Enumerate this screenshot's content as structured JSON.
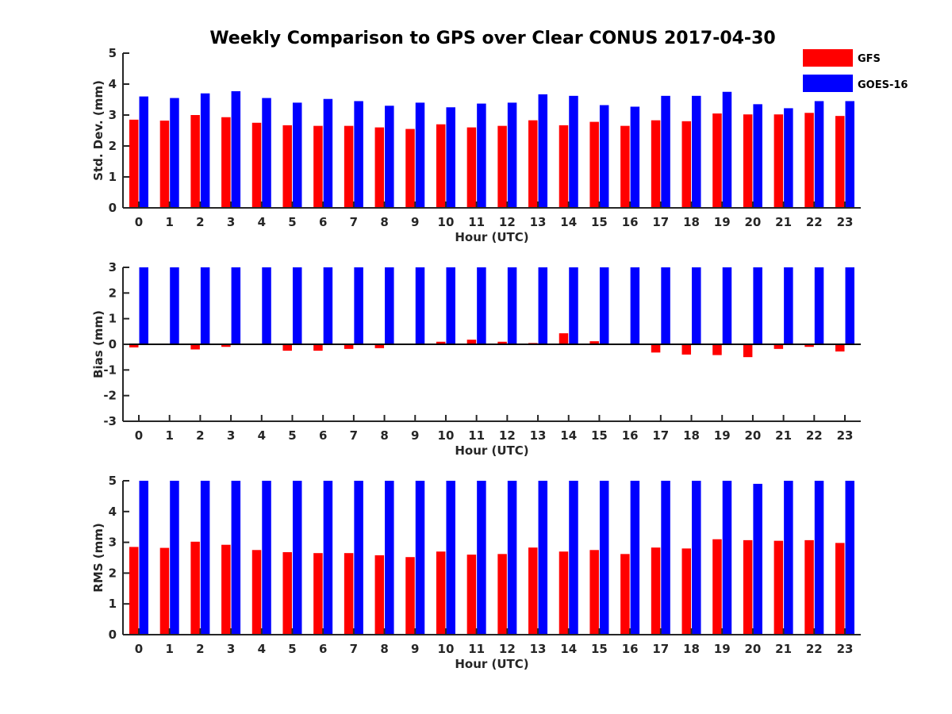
{
  "title": "Weekly Comparison to GPS over Clear CONUS 2017-04-30",
  "colors": {
    "GFS": "#ff0000",
    "GOES-16": "#0000ff"
  },
  "legend": [
    {
      "name": "GFS",
      "color": "#ff0000"
    },
    {
      "name": "GOES-16",
      "color": "#0000ff"
    }
  ],
  "chart_data": [
    {
      "type": "bar",
      "id": "std",
      "ylabel": "Std. Dev. (mm)",
      "xlabel": "Hour (UTC)",
      "ylim": [
        0,
        5
      ],
      "yticks": [
        0,
        1,
        2,
        3,
        4,
        5
      ],
      "categories": [
        "0",
        "1",
        "2",
        "3",
        "4",
        "5",
        "6",
        "7",
        "8",
        "9",
        "10",
        "11",
        "12",
        "13",
        "14",
        "15",
        "16",
        "17",
        "18",
        "19",
        "20",
        "21",
        "22",
        "23"
      ],
      "series": [
        {
          "name": "GFS",
          "values": [
            2.85,
            2.82,
            3.0,
            2.93,
            2.75,
            2.67,
            2.65,
            2.65,
            2.6,
            2.55,
            2.7,
            2.6,
            2.65,
            2.83,
            2.67,
            2.78,
            2.65,
            2.83,
            2.8,
            3.05,
            3.02,
            3.02,
            3.07,
            2.97
          ]
        },
        {
          "name": "GOES-16",
          "values": [
            3.6,
            3.55,
            3.7,
            3.77,
            3.55,
            3.4,
            3.52,
            3.45,
            3.3,
            3.4,
            3.25,
            3.37,
            3.4,
            3.67,
            3.62,
            3.32,
            3.27,
            3.62,
            3.62,
            3.75,
            3.35,
            3.22,
            3.45,
            3.45
          ]
        }
      ]
    },
    {
      "type": "bar",
      "id": "bias",
      "ylabel": "Bias (mm)",
      "xlabel": "Hour (UTC)",
      "ylim": [
        -3,
        3
      ],
      "yticks": [
        -3,
        -2,
        -1,
        0,
        1,
        2,
        3
      ],
      "zero_line": true,
      "categories": [
        "0",
        "1",
        "2",
        "3",
        "4",
        "5",
        "6",
        "7",
        "8",
        "9",
        "10",
        "11",
        "12",
        "13",
        "14",
        "15",
        "16",
        "17",
        "18",
        "19",
        "20",
        "21",
        "22",
        "23"
      ],
      "series": [
        {
          "name": "GFS",
          "values": [
            -0.12,
            0.0,
            -0.2,
            -0.1,
            -0.03,
            -0.25,
            -0.25,
            -0.18,
            -0.15,
            -0.03,
            0.1,
            0.18,
            0.1,
            0.05,
            0.43,
            0.12,
            0.0,
            -0.32,
            -0.4,
            -0.42,
            -0.5,
            -0.18,
            -0.1,
            -0.28
          ]
        },
        {
          "name": "GOES-16",
          "values": [
            3,
            3,
            3,
            3,
            3,
            3,
            3,
            3,
            3,
            3,
            3,
            3,
            3,
            3,
            3,
            3,
            3,
            3,
            3,
            3,
            3,
            3,
            3,
            3
          ]
        }
      ]
    },
    {
      "type": "bar",
      "id": "rms",
      "ylabel": "RMS (mm)",
      "xlabel": "Hour (UTC)",
      "ylim": [
        0,
        5
      ],
      "yticks": [
        0,
        1,
        2,
        3,
        4,
        5
      ],
      "categories": [
        "0",
        "1",
        "2",
        "3",
        "4",
        "5",
        "6",
        "7",
        "8",
        "9",
        "10",
        "11",
        "12",
        "13",
        "14",
        "15",
        "16",
        "17",
        "18",
        "19",
        "20",
        "21",
        "22",
        "23"
      ],
      "series": [
        {
          "name": "GFS",
          "values": [
            2.85,
            2.82,
            3.02,
            2.92,
            2.75,
            2.68,
            2.65,
            2.65,
            2.58,
            2.52,
            2.7,
            2.6,
            2.62,
            2.83,
            2.7,
            2.75,
            2.62,
            2.83,
            2.8,
            3.1,
            3.07,
            3.05,
            3.07,
            2.98
          ]
        },
        {
          "name": "GOES-16",
          "values": [
            5,
            5,
            5,
            5,
            5,
            5,
            5,
            5,
            5,
            5,
            5,
            5,
            5,
            5,
            5,
            5,
            5,
            5,
            5,
            5,
            4.9,
            5,
            5,
            5
          ]
        }
      ]
    }
  ]
}
